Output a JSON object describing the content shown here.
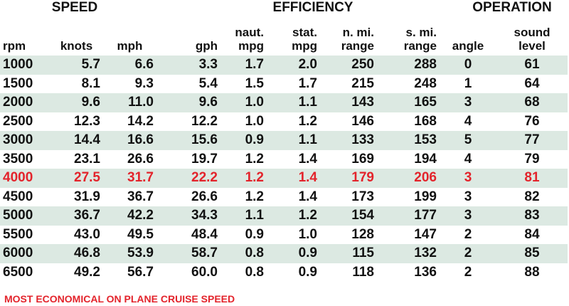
{
  "groups": [
    "SPEED",
    "EFFICIENCY",
    "OPERATION"
  ],
  "columns": [
    [
      "rpm"
    ],
    [
      "knots"
    ],
    [
      "mph"
    ],
    [
      "gph"
    ],
    [
      "naut.",
      "mpg"
    ],
    [
      "stat.",
      "mpg"
    ],
    [
      "n. mi.",
      "range"
    ],
    [
      "s. mi.",
      "range"
    ],
    [
      "angle"
    ],
    [
      "sound",
      "level"
    ]
  ],
  "rows": [
    [
      "1000",
      "5.7",
      "6.6",
      "3.3",
      "1.7",
      "2.0",
      "250",
      "288",
      "0",
      "61"
    ],
    [
      "1500",
      "8.1",
      "9.3",
      "5.4",
      "1.5",
      "1.7",
      "215",
      "248",
      "1",
      "64"
    ],
    [
      "2000",
      "9.6",
      "11.0",
      "9.6",
      "1.0",
      "1.1",
      "143",
      "165",
      "3",
      "68"
    ],
    [
      "2500",
      "12.3",
      "14.2",
      "12.2",
      "1.0",
      "1.2",
      "146",
      "168",
      "4",
      "76"
    ],
    [
      "3000",
      "14.4",
      "16.6",
      "15.6",
      "0.9",
      "1.1",
      "133",
      "153",
      "5",
      "77"
    ],
    [
      "3500",
      "23.1",
      "26.6",
      "19.7",
      "1.2",
      "1.4",
      "169",
      "194",
      "4",
      "79"
    ],
    [
      "4000",
      "27.5",
      "31.7",
      "22.2",
      "1.2",
      "1.4",
      "179",
      "206",
      "3",
      "81"
    ],
    [
      "4500",
      "31.9",
      "36.7",
      "26.6",
      "1.2",
      "1.4",
      "173",
      "199",
      "3",
      "82"
    ],
    [
      "5000",
      "36.7",
      "42.2",
      "34.3",
      "1.1",
      "1.2",
      "154",
      "177",
      "3",
      "83"
    ],
    [
      "5500",
      "43.0",
      "49.5",
      "48.4",
      "0.9",
      "1.0",
      "128",
      "147",
      "2",
      "84"
    ],
    [
      "6000",
      "46.8",
      "53.9",
      "58.7",
      "0.8",
      "0.9",
      "115",
      "132",
      "2",
      "85"
    ],
    [
      "6500",
      "49.2",
      "56.7",
      "60.0",
      "0.8",
      "0.9",
      "118",
      "136",
      "2",
      "88"
    ]
  ],
  "highlighted_row": 6,
  "highlight_color": "#e3232b",
  "stripe_color": "#dce9e2",
  "footnote": "MOST ECONOMICAL ON PLANE CRUISE SPEED"
}
